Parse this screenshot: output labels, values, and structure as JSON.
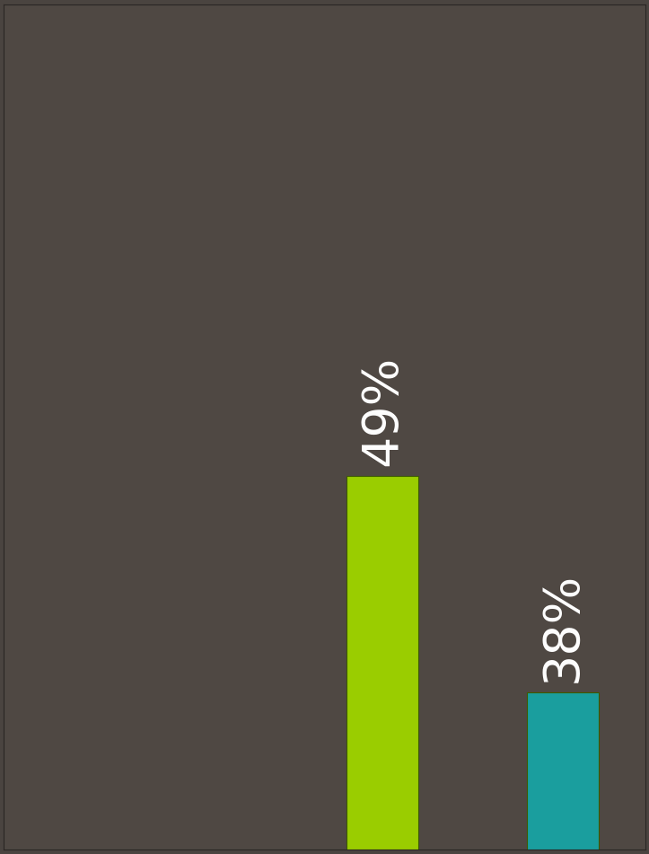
{
  "chart_data": {
    "type": "bar",
    "categories": [
      null,
      null
    ],
    "values": [
      49,
      38
    ],
    "value_labels": [
      "49%",
      "38%"
    ],
    "colors": [
      "#9acd00",
      "#1a9e9e"
    ],
    "ylim": [
      30,
      73
    ],
    "yticks": [],
    "data_labels": true,
    "tick_labels": false,
    "grid": false
  }
}
